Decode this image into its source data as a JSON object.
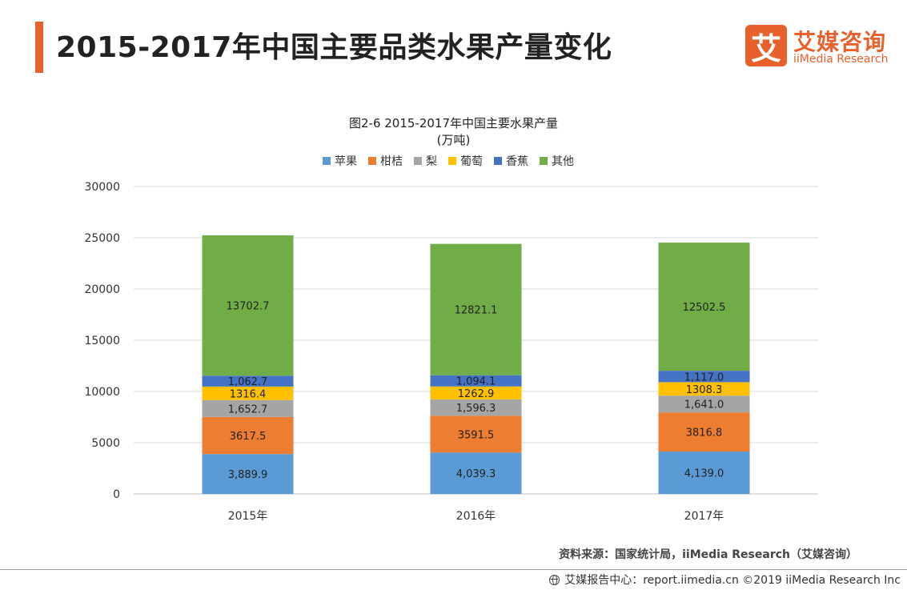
{
  "page": {
    "title": "2015-2017年中国主要品类水果产量变化",
    "logo_mark": "艾",
    "logo_cn": "艾媒咨询",
    "logo_en": "iiMedia Research",
    "source": "资料来源：国家统计局，iiMedia Research（艾媒咨询）",
    "footer": "艾媒报告中心：report.iimedia.cn ©2019 iiMedia Research Inc"
  },
  "colors": {
    "accent": "#e8602c",
    "grid": "#d9d9d9"
  },
  "chart_data": {
    "type": "bar",
    "stacked": true,
    "title": "图2-6 2015-2017年中国主要水果产量",
    "subtitle": "(万吨)",
    "categories": [
      "2015年",
      "2016年",
      "2017年"
    ],
    "ylim": [
      0,
      30000
    ],
    "yticks": [
      0,
      5000,
      10000,
      15000,
      20000,
      25000,
      30000
    ],
    "grid": true,
    "legend_position": "top",
    "series": [
      {
        "name": "苹果",
        "color": "#5b9bd5",
        "values": [
          3889.9,
          4039.3,
          4139.0
        ],
        "labels": [
          "3,889.9",
          "4,039.3",
          "4,139.0"
        ]
      },
      {
        "name": "柑桔",
        "color": "#ed7d31",
        "values": [
          3617.5,
          3591.5,
          3816.8
        ],
        "labels": [
          "3617.5",
          "3591.5",
          "3816.8"
        ]
      },
      {
        "name": "梨",
        "color": "#a5a5a5",
        "values": [
          1652.7,
          1596.3,
          1641.0
        ],
        "labels": [
          "1,652.7",
          "1,596.3",
          "1,641.0"
        ]
      },
      {
        "name": "葡萄",
        "color": "#ffc000",
        "values": [
          1316.4,
          1262.9,
          1308.3
        ],
        "labels": [
          "1316.4",
          "1262.9",
          "1308.3"
        ]
      },
      {
        "name": "香蕉",
        "color": "#4472c4",
        "values": [
          1062.7,
          1094.1,
          1117.0
        ],
        "labels": [
          "1,062.7",
          "1,094.1",
          "1,117.0"
        ]
      },
      {
        "name": "其他",
        "color": "#70ad47",
        "values": [
          13702.7,
          12821.1,
          12502.5
        ],
        "labels": [
          "13702.7",
          "12821.1",
          "12502.5"
        ]
      }
    ]
  }
}
